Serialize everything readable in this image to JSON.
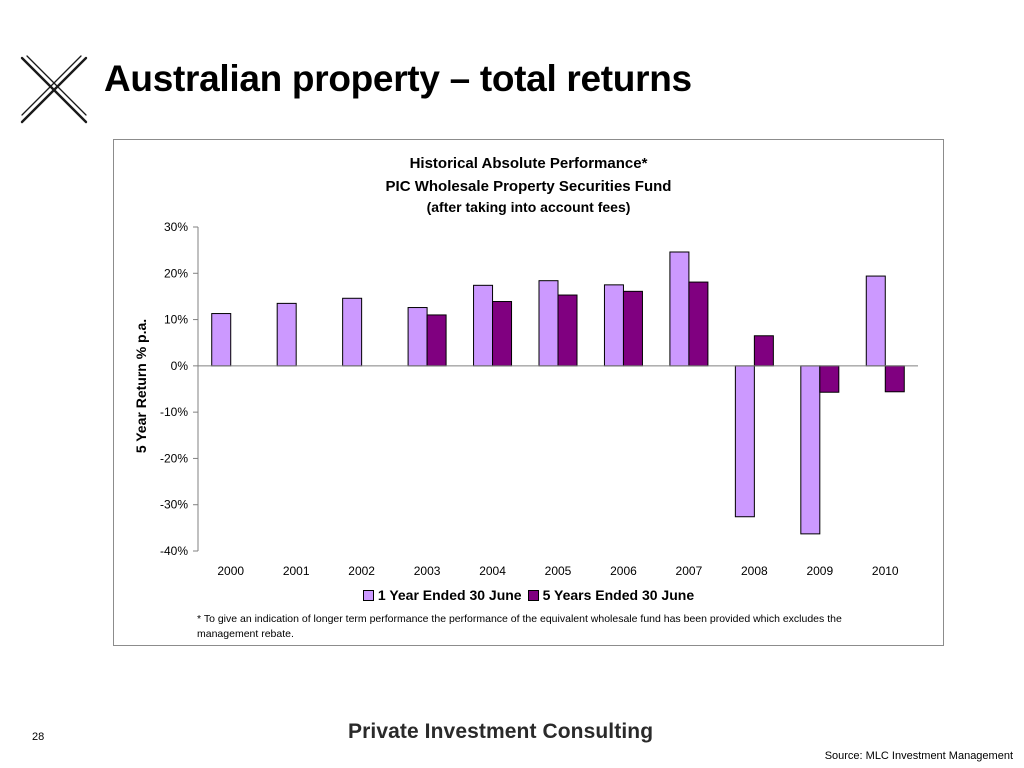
{
  "slide": {
    "title": "Australian property – total returns",
    "page_number": "28",
    "brand": "Private Investment Consulting",
    "source": "Source: MLC Investment Management",
    "footnote": "* To give an indication of longer term performance the performance of the equivalent wholesale fund has been provided which excludes the management rebate."
  },
  "colors": {
    "series_1": "#cc99ff",
    "series_2": "#800080",
    "axis": "#808080",
    "frame": "#8c8c8c"
  },
  "chart_data": {
    "type": "bar",
    "title": "Historical Absolute Performance*",
    "subtitle": "PIC Wholesale Property Securities Fund",
    "subtitle2": "(after taking into account fees)",
    "xlabel": "",
    "ylabel": "5 Year Return % p.a.",
    "ylim": [
      -40,
      30
    ],
    "yticks": [
      30,
      20,
      10,
      0,
      -10,
      -20,
      -30,
      -40
    ],
    "ytick_format": "percent",
    "grid": false,
    "legend_position": "bottom",
    "categories": [
      "2000",
      "2001",
      "2002",
      "2003",
      "2004",
      "2005",
      "2006",
      "2007",
      "2008",
      "2009",
      "2010"
    ],
    "series": [
      {
        "name": "1 Year Ended 30 June",
        "values": [
          11.3,
          13.5,
          14.6,
          12.6,
          17.4,
          18.4,
          17.5,
          24.6,
          -32.6,
          -36.3,
          19.4
        ]
      },
      {
        "name": "5 Years Ended 30 June",
        "values": [
          null,
          null,
          null,
          11.0,
          13.9,
          15.3,
          16.1,
          18.1,
          6.5,
          -5.7,
          -5.6
        ]
      }
    ]
  }
}
